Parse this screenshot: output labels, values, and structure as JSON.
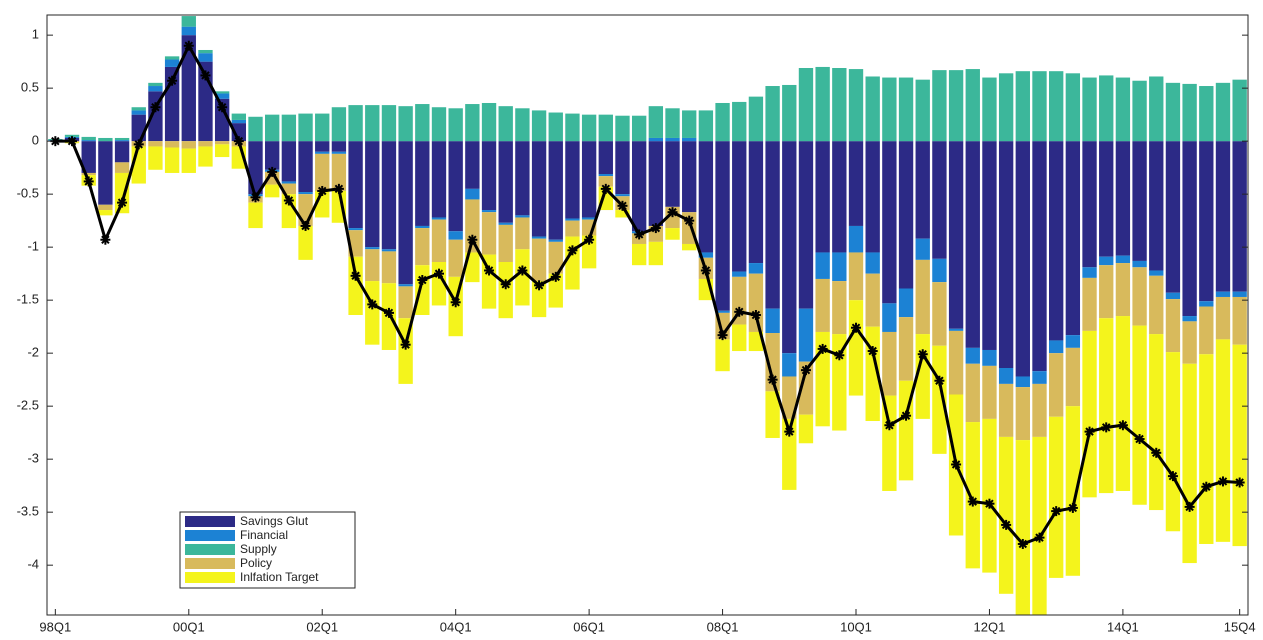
{
  "chart_data": {
    "type": "bar",
    "stacked": true,
    "categories": [
      "98Q1",
      null,
      null,
      null,
      null,
      null,
      null,
      null,
      "00Q1",
      null,
      null,
      null,
      null,
      null,
      null,
      null,
      "02Q1",
      null,
      null,
      null,
      null,
      null,
      null,
      null,
      "04Q1",
      null,
      null,
      null,
      null,
      null,
      null,
      null,
      "06Q1",
      null,
      null,
      null,
      null,
      null,
      null,
      null,
      "08Q1",
      null,
      null,
      null,
      null,
      null,
      null,
      null,
      "10Q1",
      null,
      null,
      null,
      null,
      null,
      null,
      null,
      "12Q1",
      null,
      null,
      null,
      null,
      null,
      null,
      null,
      "14Q1",
      null,
      null,
      null,
      null,
      null,
      null,
      "15Q4"
    ],
    "series": [
      {
        "name": "Savings Glut",
        "color": "#2c2a86",
        "values": [
          0,
          0.03,
          -0.3,
          -0.6,
          -0.2,
          0.25,
          0.47,
          0.7,
          1.0,
          0.75,
          0.4,
          0.17,
          -0.5,
          -0.27,
          -0.38,
          -0.48,
          -0.1,
          -0.1,
          -0.82,
          -1.0,
          -1.02,
          -1.35,
          -0.8,
          -0.72,
          -0.85,
          -0.45,
          -0.65,
          -0.77,
          -0.7,
          -0.9,
          -0.93,
          -0.73,
          -0.72,
          -0.31,
          -0.5,
          -0.85,
          -0.8,
          -0.62,
          -0.67,
          -1.05,
          -1.6,
          -1.23,
          -1.15,
          -1.58,
          -2.0,
          -1.58,
          -1.05,
          -1.05,
          -0.8,
          -1.05,
          -1.53,
          -1.39,
          -0.92,
          -1.11,
          -1.77,
          -1.95,
          -1.97,
          -2.14,
          -2.22,
          -2.17,
          -1.88,
          -1.83,
          -1.19,
          -1.09,
          -1.08,
          -1.13,
          -1.22,
          -1.43,
          -1.65,
          -1.51,
          -1.42,
          -1.42
        ]
      },
      {
        "name": "Financial",
        "color": "#1c82d4",
        "values": [
          0.01,
          0.01,
          0.01,
          0,
          0.01,
          0.04,
          0.05,
          0.07,
          0.08,
          0.08,
          0.05,
          0.03,
          -0.02,
          -0.02,
          -0.02,
          -0.02,
          -0.02,
          -0.02,
          -0.02,
          -0.02,
          -0.02,
          -0.02,
          -0.02,
          -0.02,
          -0.08,
          -0.1,
          -0.02,
          -0.02,
          -0.02,
          -0.02,
          -0.02,
          -0.02,
          -0.02,
          -0.02,
          -0.02,
          -0.02,
          0.03,
          0.03,
          0.03,
          -0.05,
          -0.02,
          -0.05,
          -0.1,
          -0.23,
          -0.22,
          -0.5,
          -0.25,
          -0.27,
          -0.25,
          -0.2,
          -0.27,
          -0.27,
          -0.2,
          -0.22,
          -0.02,
          -0.15,
          -0.15,
          -0.15,
          -0.1,
          -0.12,
          -0.12,
          -0.12,
          -0.1,
          -0.08,
          -0.07,
          -0.06,
          -0.05,
          -0.06,
          -0.05,
          -0.05,
          -0.05,
          -0.05
        ]
      },
      {
        "name": "Supply",
        "color": "#3cb79b",
        "values": [
          0.01,
          0.02,
          0.03,
          0.03,
          0.02,
          0.03,
          0.03,
          0.03,
          0.1,
          0.03,
          0.02,
          0.06,
          0.23,
          0.25,
          0.25,
          0.26,
          0.26,
          0.32,
          0.34,
          0.34,
          0.34,
          0.33,
          0.35,
          0.32,
          0.31,
          0.35,
          0.36,
          0.33,
          0.31,
          0.29,
          0.27,
          0.26,
          0.25,
          0.25,
          0.24,
          0.24,
          0.3,
          0.28,
          0.26,
          0.29,
          0.36,
          0.37,
          0.42,
          0.52,
          0.53,
          0.69,
          0.7,
          0.69,
          0.68,
          0.61,
          0.6,
          0.6,
          0.58,
          0.67,
          0.67,
          0.68,
          0.6,
          0.64,
          0.66,
          0.66,
          0.66,
          0.64,
          0.6,
          0.62,
          0.6,
          0.57,
          0.61,
          0.55,
          0.54,
          0.52,
          0.55,
          0.58
        ]
      },
      {
        "name": "Policy",
        "color": "#d8ba5c",
        "values": [
          0,
          -0.01,
          -0.02,
          -0.05,
          -0.1,
          -0.05,
          -0.05,
          -0.06,
          -0.07,
          -0.05,
          -0.03,
          -0.05,
          -0.06,
          -0.12,
          -0.1,
          -0.3,
          -0.35,
          -0.35,
          -0.25,
          -0.3,
          -0.3,
          -0.3,
          -0.35,
          -0.4,
          -0.35,
          -0.5,
          -0.4,
          -0.35,
          -0.3,
          -0.4,
          -0.3,
          -0.15,
          -0.15,
          -0.1,
          -0.13,
          -0.1,
          -0.15,
          -0.2,
          -0.3,
          -0.2,
          -0.25,
          -0.45,
          -0.55,
          -0.55,
          -0.4,
          -0.5,
          -0.5,
          -0.5,
          -0.45,
          -0.5,
          -0.6,
          -0.6,
          -0.7,
          -0.6,
          -0.6,
          -0.55,
          -0.5,
          -0.5,
          -0.5,
          -0.5,
          -0.6,
          -0.55,
          -0.5,
          -0.5,
          -0.5,
          -0.55,
          -0.55,
          -0.5,
          -0.4,
          -0.45,
          -0.4,
          -0.45
        ]
      },
      {
        "name": "Inlfation Target",
        "color": "#f4f41c",
        "values": [
          0,
          -0.01,
          -0.1,
          -0.05,
          -0.38,
          -0.35,
          -0.22,
          -0.24,
          -0.23,
          -0.19,
          -0.12,
          -0.21,
          -0.24,
          -0.12,
          -0.32,
          -0.32,
          -0.25,
          -0.3,
          -0.55,
          -0.6,
          -0.63,
          -0.62,
          -0.47,
          -0.41,
          -0.56,
          -0.28,
          -0.51,
          -0.53,
          -0.53,
          -0.34,
          -0.32,
          -0.5,
          -0.31,
          -0.22,
          -0.07,
          -0.2,
          -0.22,
          -0.11,
          -0.06,
          -0.2,
          -0.3,
          -0.25,
          -0.18,
          -0.44,
          -0.67,
          -0.27,
          -0.89,
          -0.91,
          -0.9,
          -0.89,
          -0.9,
          -0.94,
          -0.8,
          -1.02,
          -1.33,
          -1.38,
          -1.45,
          -1.48,
          -1.65,
          -1.68,
          -1.52,
          -1.6,
          -1.57,
          -1.65,
          -1.65,
          -1.69,
          -1.66,
          -1.69,
          -1.88,
          -1.79,
          -1.91,
          -1.9
        ]
      }
    ],
    "line_values": [
      0,
      0,
      -0.38,
      -0.93,
      -0.58,
      -0.03,
      0.32,
      0.57,
      0.9,
      0.62,
      0.32,
      0,
      -0.53,
      -0.29,
      -0.56,
      -0.8,
      -0.47,
      -0.45,
      -1.27,
      -1.54,
      -1.62,
      -1.92,
      -1.31,
      -1.25,
      -1.52,
      -0.93,
      -1.22,
      -1.35,
      -1.22,
      -1.36,
      -1.28,
      -1.03,
      -0.93,
      -0.45,
      -0.61,
      -0.88,
      -0.82,
      -0.67,
      -0.75,
      -1.22,
      -1.83,
      -1.61,
      -1.64,
      -2.25,
      -2.74,
      -2.16,
      -1.96,
      -2.02,
      -1.76,
      -1.98,
      -2.68,
      -2.59,
      -2.01,
      -2.26,
      -3.05,
      -3.4,
      -3.42,
      -3.62,
      -3.8,
      -3.74,
      -3.49,
      -3.46,
      -2.74,
      -2.7,
      -2.68,
      -2.81,
      -2.94,
      -3.16,
      -3.45,
      -3.26,
      -3.21,
      -3.22
    ],
    "line_color": "#000000",
    "ylim": [
      -4.47,
      1.19
    ],
    "yticks": [
      -4,
      -3.5,
      -3,
      -2.5,
      -2,
      -1.5,
      -1,
      -0.5,
      0,
      0.5,
      1
    ],
    "legend": "lower left"
  }
}
